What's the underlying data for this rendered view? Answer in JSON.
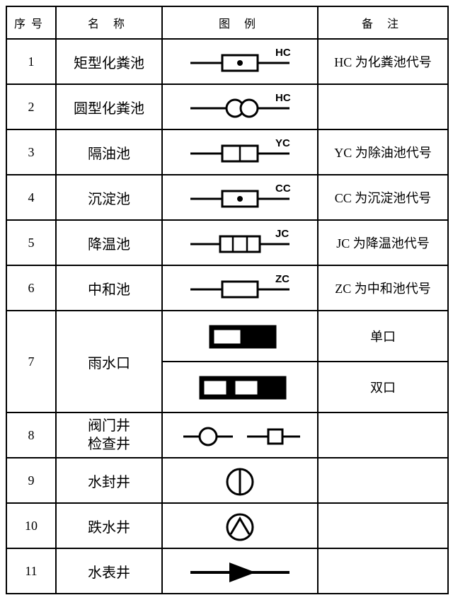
{
  "headers": {
    "seq": "序号",
    "name": "名 称",
    "legend": "图 例",
    "remark": "备 注"
  },
  "colwidths": {
    "seq": 70,
    "name": 150,
    "legend": 220,
    "remark": 184
  },
  "stroke": "#000000",
  "fill_white": "#ffffff",
  "fill_black": "#000000",
  "label_font": "bold 15px Arial, sans-serif",
  "rows": [
    {
      "num": "1",
      "name": "矩型化粪池",
      "symbol": "rect_dot_label",
      "label": "HC",
      "remark": "HC 为化粪池代号"
    },
    {
      "num": "2",
      "name": "圆型化粪池",
      "symbol": "double_circle",
      "label": "HC",
      "remark": ""
    },
    {
      "num": "3",
      "name": "隔油池",
      "symbol": "rect_split_label",
      "label": "YC",
      "remark": "YC 为除油池代号"
    },
    {
      "num": "4",
      "name": "沉淀池",
      "symbol": "rect_dot_label",
      "label": "CC",
      "remark": "CC 为沉淀池代号"
    },
    {
      "num": "5",
      "name": "降温池",
      "symbol": "rect_three_label",
      "label": "JC",
      "remark": "JC 为降温池代号"
    },
    {
      "num": "6",
      "name": "中和池",
      "symbol": "rect_plain_label",
      "label": "ZC",
      "remark": "ZC 为中和池代号"
    },
    {
      "num": "7",
      "name": "雨水口",
      "symbol": "inlet_single",
      "label": "",
      "remark": "单口"
    },
    {
      "num": "",
      "name": "",
      "symbol": "inlet_double",
      "label": "",
      "remark": "双口"
    },
    {
      "num": "8",
      "name": "阀门井\n检查井",
      "symbol": "well_pair",
      "label": "",
      "remark": ""
    },
    {
      "num": "9",
      "name": "水封井",
      "symbol": "circle_vbar",
      "label": "",
      "remark": ""
    },
    {
      "num": "10",
      "name": "跌水井",
      "symbol": "circle_chev",
      "label": "",
      "remark": ""
    },
    {
      "num": "11",
      "name": "水表井",
      "symbol": "line_triangle",
      "label": "",
      "remark": ""
    }
  ]
}
